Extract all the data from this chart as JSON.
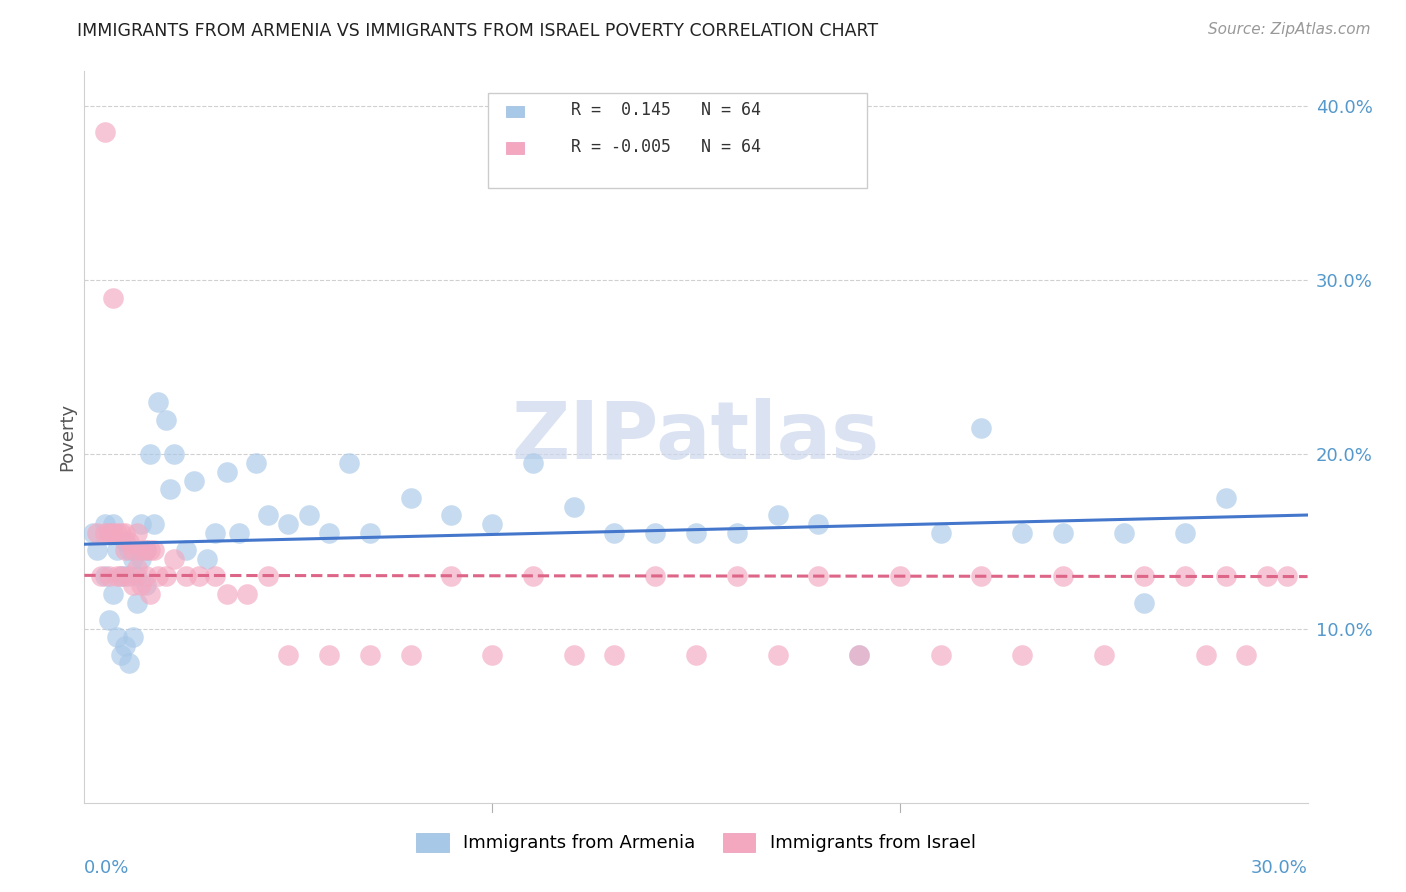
{
  "title": "IMMIGRANTS FROM ARMENIA VS IMMIGRANTS FROM ISRAEL POVERTY CORRELATION CHART",
  "source": "Source: ZipAtlas.com",
  "ylabel": "Poverty",
  "x_min": 0.0,
  "x_max": 0.3,
  "y_min": 0.0,
  "y_max": 0.42,
  "y_ticks": [
    0.1,
    0.2,
    0.3,
    0.4
  ],
  "y_tick_labels": [
    "10.0%",
    "20.0%",
    "30.0%",
    "40.0%"
  ],
  "x_ticks_minor": [
    0.1,
    0.2
  ],
  "blue_color": "#a8c8e8",
  "pink_color": "#f4a8c0",
  "trend_blue": "#4477cc",
  "trend_pink": "#dd6688",
  "watermark_color": "#ccd8ee",
  "watermark": "ZIPatlas",
  "armenia_R": 0.145,
  "israel_R": -0.005,
  "N": 64,
  "armenia_x": [
    0.002,
    0.003,
    0.005,
    0.005,
    0.006,
    0.006,
    0.007,
    0.007,
    0.008,
    0.008,
    0.009,
    0.009,
    0.01,
    0.01,
    0.01,
    0.011,
    0.011,
    0.012,
    0.012,
    0.013,
    0.013,
    0.014,
    0.014,
    0.015,
    0.015,
    0.016,
    0.017,
    0.018,
    0.02,
    0.021,
    0.022,
    0.025,
    0.027,
    0.03,
    0.032,
    0.035,
    0.038,
    0.042,
    0.045,
    0.05,
    0.055,
    0.06,
    0.065,
    0.07,
    0.08,
    0.09,
    0.1,
    0.11,
    0.12,
    0.13,
    0.14,
    0.15,
    0.16,
    0.17,
    0.18,
    0.19,
    0.21,
    0.22,
    0.23,
    0.24,
    0.255,
    0.26,
    0.27,
    0.28
  ],
  "armenia_y": [
    0.155,
    0.145,
    0.16,
    0.13,
    0.155,
    0.105,
    0.16,
    0.12,
    0.145,
    0.095,
    0.13,
    0.085,
    0.15,
    0.13,
    0.09,
    0.145,
    0.08,
    0.14,
    0.095,
    0.13,
    0.115,
    0.16,
    0.14,
    0.145,
    0.125,
    0.2,
    0.16,
    0.23,
    0.22,
    0.18,
    0.2,
    0.145,
    0.185,
    0.14,
    0.155,
    0.19,
    0.155,
    0.195,
    0.165,
    0.16,
    0.165,
    0.155,
    0.195,
    0.155,
    0.175,
    0.165,
    0.16,
    0.195,
    0.17,
    0.155,
    0.155,
    0.155,
    0.155,
    0.165,
    0.16,
    0.085,
    0.155,
    0.215,
    0.155,
    0.155,
    0.155,
    0.115,
    0.155,
    0.175
  ],
  "israel_x": [
    0.003,
    0.004,
    0.005,
    0.005,
    0.006,
    0.006,
    0.007,
    0.007,
    0.008,
    0.008,
    0.009,
    0.009,
    0.01,
    0.01,
    0.011,
    0.011,
    0.012,
    0.012,
    0.013,
    0.013,
    0.014,
    0.014,
    0.015,
    0.015,
    0.016,
    0.016,
    0.017,
    0.018,
    0.02,
    0.022,
    0.025,
    0.028,
    0.032,
    0.035,
    0.04,
    0.045,
    0.05,
    0.06,
    0.07,
    0.08,
    0.09,
    0.1,
    0.11,
    0.12,
    0.13,
    0.14,
    0.15,
    0.16,
    0.17,
    0.18,
    0.19,
    0.2,
    0.21,
    0.22,
    0.23,
    0.24,
    0.25,
    0.26,
    0.27,
    0.275,
    0.28,
    0.285,
    0.29,
    0.295
  ],
  "israel_y": [
    0.155,
    0.13,
    0.385,
    0.155,
    0.155,
    0.13,
    0.29,
    0.155,
    0.155,
    0.13,
    0.155,
    0.13,
    0.155,
    0.145,
    0.15,
    0.13,
    0.145,
    0.125,
    0.155,
    0.135,
    0.145,
    0.125,
    0.145,
    0.13,
    0.145,
    0.12,
    0.145,
    0.13,
    0.13,
    0.14,
    0.13,
    0.13,
    0.13,
    0.12,
    0.12,
    0.13,
    0.085,
    0.085,
    0.085,
    0.085,
    0.13,
    0.085,
    0.13,
    0.085,
    0.085,
    0.13,
    0.085,
    0.13,
    0.085,
    0.13,
    0.085,
    0.13,
    0.085,
    0.13,
    0.085,
    0.13,
    0.085,
    0.13,
    0.13,
    0.085,
    0.13,
    0.085,
    0.13,
    0.13
  ],
  "legend_R_armenia": "R =  0.145",
  "legend_N_armenia": "N = 64",
  "legend_R_israel": "R = -0.005",
  "legend_N_israel": "N = 64"
}
